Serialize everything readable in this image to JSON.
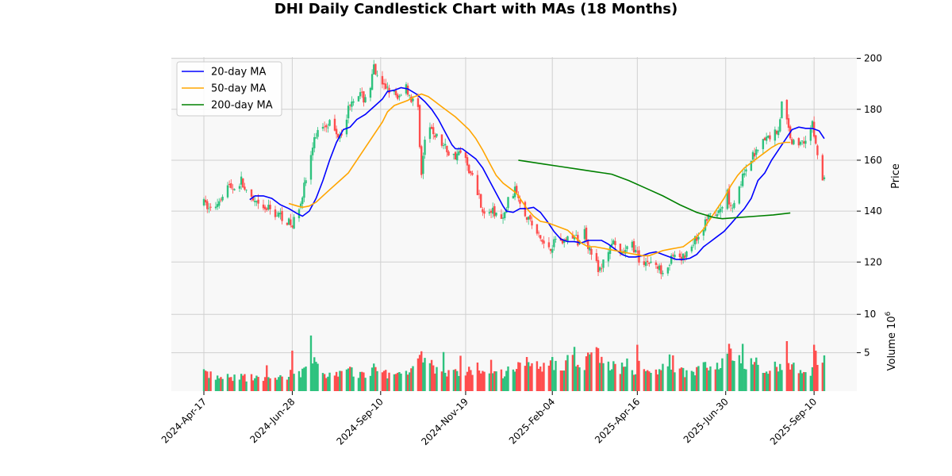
{
  "chart_data": {
    "type": "candlestick",
    "title": "DHI Daily Candlestick Chart with MAs (18 Months)",
    "ylabel_price": "Price",
    "ylabel_volume": "Volume",
    "volume_unit": "10^6",
    "price_ylim": [
      107,
      200
    ],
    "price_ticks": [
      120,
      140,
      160,
      180,
      200
    ],
    "volume_ylim": [
      0,
      12.5
    ],
    "volume_ticks": [
      5,
      10
    ],
    "x_ticks": [
      "2024-Apr-17",
      "2024-Jun-28",
      "2024-Sep-10",
      "2024-Nov-19",
      "2025-Feb-04",
      "2025-Apr-16",
      "2025-Jun-30",
      "2025-Sep-10"
    ],
    "grid": true,
    "legend_position": "top-left",
    "up_color": "#2ec27e",
    "down_color": "#ff4d4d",
    "series": [
      {
        "name": "20-day MA",
        "color": "#0000ff",
        "points": [
          [
            27,
            144.5
          ],
          [
            30,
            146
          ],
          [
            35,
            146
          ],
          [
            40,
            145
          ],
          [
            45,
            142.5
          ],
          [
            50,
            141
          ],
          [
            55,
            139
          ],
          [
            58,
            138
          ],
          [
            62,
            140
          ],
          [
            66,
            145
          ],
          [
            70,
            152
          ],
          [
            74,
            160
          ],
          [
            78,
            167
          ],
          [
            82,
            172
          ],
          [
            86,
            173
          ],
          [
            90,
            176
          ],
          [
            95,
            178
          ],
          [
            100,
            181
          ],
          [
            105,
            184
          ],
          [
            108,
            187
          ],
          [
            112,
            187.5
          ],
          [
            116,
            188.5
          ],
          [
            120,
            188
          ],
          [
            125,
            186
          ],
          [
            130,
            183
          ],
          [
            134,
            180
          ],
          [
            138,
            176
          ],
          [
            142,
            171
          ],
          [
            146,
            166
          ],
          [
            148,
            164.5
          ],
          [
            152,
            164.5
          ],
          [
            156,
            162.5
          ],
          [
            160,
            160.5
          ],
          [
            164,
            157
          ],
          [
            168,
            152
          ],
          [
            172,
            147
          ],
          [
            176,
            142
          ],
          [
            178,
            140
          ],
          [
            182,
            139.5
          ],
          [
            186,
            141
          ],
          [
            190,
            141
          ],
          [
            194,
            141.5
          ],
          [
            198,
            139.5
          ],
          [
            202,
            136
          ],
          [
            206,
            132
          ],
          [
            210,
            129
          ],
          [
            214,
            128
          ],
          [
            218,
            128
          ],
          [
            222,
            127.5
          ],
          [
            226,
            128.5
          ],
          [
            230,
            128.5
          ],
          [
            234,
            128.5
          ],
          [
            238,
            127
          ],
          [
            242,
            125
          ],
          [
            246,
            123
          ],
          [
            250,
            122
          ],
          [
            254,
            122
          ],
          [
            258,
            122.5
          ],
          [
            262,
            123.5
          ],
          [
            266,
            124
          ],
          [
            270,
            123
          ],
          [
            274,
            122
          ],
          [
            278,
            121
          ],
          [
            282,
            121
          ],
          [
            286,
            121.5
          ],
          [
            290,
            123
          ],
          [
            294,
            126
          ],
          [
            298,
            128
          ],
          [
            302,
            130
          ],
          [
            306,
            132
          ],
          [
            310,
            135
          ],
          [
            314,
            138
          ],
          [
            318,
            141
          ],
          [
            322,
            145
          ],
          [
            326,
            152
          ],
          [
            330,
            155
          ],
          [
            334,
            160
          ],
          [
            338,
            164
          ],
          [
            342,
            168
          ],
          [
            346,
            172
          ],
          [
            350,
            173
          ],
          [
            354,
            172.5
          ],
          [
            358,
            172.5
          ],
          [
            362,
            171.5
          ],
          [
            365,
            168.5
          ]
        ]
      },
      {
        "name": "50-day MA",
        "color": "#ffa500",
        "points": [
          [
            50,
            143
          ],
          [
            55,
            142
          ],
          [
            58,
            141.5
          ],
          [
            62,
            142
          ],
          [
            66,
            143.5
          ],
          [
            70,
            146
          ],
          [
            75,
            149
          ],
          [
            80,
            152
          ],
          [
            85,
            155
          ],
          [
            90,
            160
          ],
          [
            95,
            165
          ],
          [
            100,
            170
          ],
          [
            105,
            175
          ],
          [
            108,
            179
          ],
          [
            112,
            181.5
          ],
          [
            116,
            182.5
          ],
          [
            120,
            183.5
          ],
          [
            124,
            185
          ],
          [
            128,
            186
          ],
          [
            132,
            185
          ],
          [
            136,
            183
          ],
          [
            140,
            181
          ],
          [
            144,
            179
          ],
          [
            148,
            177
          ],
          [
            152,
            174.5
          ],
          [
            156,
            172
          ],
          [
            160,
            168.5
          ],
          [
            164,
            164
          ],
          [
            168,
            159
          ],
          [
            172,
            154
          ],
          [
            176,
            151
          ],
          [
            180,
            149
          ],
          [
            184,
            147
          ],
          [
            186,
            145
          ],
          [
            190,
            141
          ],
          [
            194,
            138
          ],
          [
            198,
            136
          ],
          [
            202,
            135.5
          ],
          [
            206,
            134.5
          ],
          [
            210,
            133.5
          ],
          [
            214,
            132.5
          ],
          [
            218,
            130
          ],
          [
            222,
            127.5
          ],
          [
            226,
            126
          ],
          [
            230,
            126
          ],
          [
            234,
            125.5
          ],
          [
            238,
            125
          ],
          [
            242,
            124.5
          ],
          [
            246,
            124
          ],
          [
            250,
            123.5
          ],
          [
            254,
            123
          ],
          [
            258,
            122.5
          ],
          [
            262,
            122.5
          ],
          [
            266,
            123.5
          ],
          [
            270,
            124.5
          ],
          [
            274,
            125
          ],
          [
            278,
            125.5
          ],
          [
            282,
            126
          ],
          [
            286,
            128
          ],
          [
            290,
            130
          ],
          [
            294,
            133
          ],
          [
            298,
            137
          ],
          [
            302,
            141
          ],
          [
            306,
            145
          ],
          [
            310,
            150
          ],
          [
            314,
            154
          ],
          [
            318,
            157
          ],
          [
            322,
            159
          ],
          [
            326,
            161
          ],
          [
            330,
            163
          ],
          [
            334,
            165
          ],
          [
            338,
            166.5
          ],
          [
            342,
            167
          ],
          [
            345,
            167
          ]
        ]
      },
      {
        "name": "200-day MA",
        "color": "#008000",
        "points": [
          [
            185,
            160
          ],
          [
            190,
            159.5
          ],
          [
            200,
            158.5
          ],
          [
            210,
            157.5
          ],
          [
            220,
            156.5
          ],
          [
            230,
            155.5
          ],
          [
            240,
            154.5
          ],
          [
            250,
            152
          ],
          [
            260,
            149
          ],
          [
            270,
            146
          ],
          [
            280,
            142.5
          ],
          [
            290,
            139.5
          ],
          [
            300,
            137.5
          ],
          [
            305,
            137
          ],
          [
            315,
            137.5
          ],
          [
            325,
            138
          ],
          [
            335,
            138.5
          ],
          [
            345,
            139.3
          ]
        ]
      }
    ],
    "anchors": [
      [
        0,
        143,
        0.9
      ],
      [
        5,
        140,
        0.7
      ],
      [
        10,
        146,
        0.6
      ],
      [
        14,
        150,
        0.65
      ],
      [
        18,
        149,
        0.6
      ],
      [
        22,
        152,
        0.7
      ],
      [
        26,
        145,
        0.6
      ],
      [
        30,
        143,
        0.6
      ],
      [
        34,
        140,
        0.55
      ],
      [
        38,
        141,
        0.6
      ],
      [
        42,
        139,
        0.6
      ],
      [
        46,
        138,
        0.6
      ],
      [
        49,
        136,
        0.7
      ],
      [
        52,
        134,
        1.0
      ],
      [
        55,
        140,
        0.9
      ],
      [
        58,
        147,
        0.9
      ],
      [
        62,
        158,
        1.3
      ],
      [
        64,
        165,
        1.4
      ],
      [
        66,
        170,
        1.1
      ],
      [
        70,
        174,
        0.9
      ],
      [
        74,
        175,
        0.8
      ],
      [
        78,
        170,
        0.8
      ],
      [
        82,
        172,
        0.8
      ],
      [
        86,
        183,
        0.9
      ],
      [
        90,
        187,
        0.8
      ],
      [
        94,
        184,
        0.8
      ],
      [
        98,
        189,
        0.9
      ],
      [
        100,
        196,
        1.0
      ],
      [
        104,
        188,
        0.9
      ],
      [
        108,
        189,
        0.8
      ],
      [
        112,
        186,
        0.8
      ],
      [
        114,
        183,
        0.8
      ],
      [
        118,
        191,
        1.0
      ],
      [
        122,
        184,
        1.0
      ],
      [
        126,
        180,
        1.2
      ],
      [
        128,
        154,
        1.6
      ],
      [
        130,
        168,
        1.4
      ],
      [
        134,
        172,
        1.2
      ],
      [
        138,
        168,
        1.0
      ],
      [
        142,
        165,
        0.9
      ],
      [
        146,
        161,
        0.8
      ],
      [
        150,
        163,
        0.8
      ],
      [
        154,
        160,
        0.9
      ],
      [
        158,
        153,
        1.0
      ],
      [
        162,
        146,
        1.1
      ],
      [
        165,
        138,
        1.1
      ],
      [
        168,
        140,
        0.8
      ],
      [
        172,
        139,
        0.8
      ],
      [
        176,
        136,
        0.8
      ],
      [
        180,
        147,
        1.2
      ],
      [
        184,
        148,
        1.1
      ],
      [
        188,
        141,
        1.3
      ],
      [
        192,
        136,
        1.2
      ],
      [
        196,
        131,
        1.1
      ],
      [
        200,
        127,
        1.2
      ],
      [
        204,
        126,
        1.3
      ],
      [
        208,
        130,
        1.3
      ],
      [
        212,
        128,
        1.3
      ],
      [
        216,
        131,
        1.4
      ],
      [
        220,
        128,
        1.3
      ],
      [
        224,
        132,
        1.3
      ],
      [
        226,
        127,
        1.5
      ],
      [
        230,
        122,
        1.8
      ],
      [
        232,
        116,
        1.9
      ],
      [
        234,
        118,
        1.4
      ],
      [
        238,
        125,
        1.3
      ],
      [
        240,
        128,
        1.2
      ],
      [
        244,
        122,
        1.1
      ],
      [
        248,
        124,
        1.0
      ],
      [
        252,
        127,
        1.0
      ],
      [
        256,
        121,
        1.1
      ],
      [
        260,
        120,
        1.0
      ],
      [
        264,
        120,
        1.0
      ],
      [
        268,
        117,
        1.0
      ],
      [
        272,
        118,
        1.0
      ],
      [
        276,
        122,
        1.0
      ],
      [
        280,
        120,
        0.9
      ],
      [
        284,
        124,
        0.9
      ],
      [
        288,
        128,
        0.9
      ],
      [
        292,
        131,
        1.1
      ],
      [
        296,
        137,
        1.3
      ],
      [
        300,
        138,
        1.0
      ],
      [
        304,
        140,
        1.3
      ],
      [
        308,
        148,
        1.4
      ],
      [
        310,
        141,
        2.5
      ],
      [
        312,
        144,
        1.2
      ],
      [
        316,
        152,
        1.2
      ],
      [
        320,
        156,
        1.1
      ],
      [
        322,
        160,
        1.2
      ],
      [
        326,
        166,
        1.1
      ],
      [
        330,
        168,
        1.0
      ],
      [
        334,
        170,
        1.2
      ],
      [
        338,
        172,
        1.2
      ],
      [
        340,
        182,
        1.2
      ],
      [
        342,
        178,
        1.2
      ],
      [
        344,
        172,
        1.1
      ],
      [
        346,
        168,
        1.1
      ],
      [
        348,
        165,
        1.0
      ],
      [
        352,
        168,
        1.1
      ],
      [
        356,
        170,
        0.9
      ],
      [
        358,
        174,
        1.0
      ],
      [
        360,
        166,
        1.5
      ],
      [
        362,
        158,
        1.3
      ],
      [
        364,
        152,
        1.4
      ]
    ]
  }
}
